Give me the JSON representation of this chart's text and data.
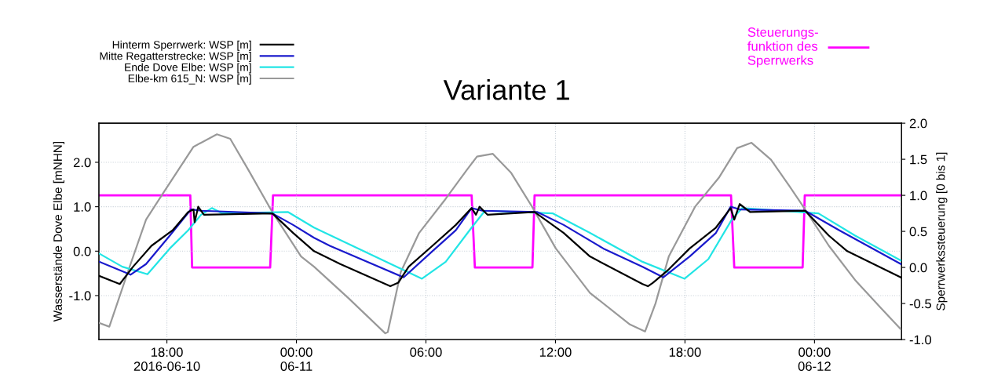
{
  "chart_data": {
    "type": "line",
    "title": "Variante 1",
    "ylabel": "Wasserstände Dove Elbe [mNHN]",
    "y2label": "Sperrwerkssteuerung [0 bis 1]",
    "xlim": [
      "2016-06-10T14:51",
      "2016-06-12T04:02"
    ],
    "xticks": [
      {
        "value": "2016-06-10T18:00",
        "label": "18:00\n2016-06-10"
      },
      {
        "value": "2016-06-11T00:00",
        "label": "00:00\n06-11"
      },
      {
        "value": "2016-06-11T06:00",
        "label": "06:00"
      },
      {
        "value": "2016-06-11T12:00",
        "label": "12:00"
      },
      {
        "value": "2016-06-11T18:00",
        "label": "18:00"
      },
      {
        "value": "2016-06-12T00:00",
        "label": "00:00\n06-12"
      }
    ],
    "ylim": [
      -1.99,
      2.88
    ],
    "yticks": [
      {
        "value": -1,
        "label": "-1.0"
      },
      {
        "value": 0,
        "label": "0.0"
      },
      {
        "value": 1,
        "label": "1.0"
      },
      {
        "value": 2,
        "label": "2.0"
      }
    ],
    "y2lim": [
      -1,
      2
    ],
    "y2ticks": [
      {
        "value": -1,
        "label": "-1.0"
      },
      {
        "value": -0.5,
        "label": "-0.5"
      },
      {
        "value": 0,
        "label": "0.0"
      },
      {
        "value": 0.5,
        "label": "0.5"
      },
      {
        "value": 1,
        "label": "1.0"
      },
      {
        "value": 1.5,
        "label": "1.5"
      },
      {
        "value": 2,
        "label": "2.0"
      }
    ],
    "grid": true,
    "legend": "top",
    "marker": "none",
    "line_style": "solid",
    "series": [
      {
        "name": "Elbe-km 615_N: WSP [m]",
        "color": "#999999",
        "x": [
          "2016-06-10T14:53",
          "2016-06-10T15:20",
          "2016-06-10T16:19",
          "2016-06-10T17:02",
          "2016-06-10T17:53",
          "2016-06-10T19:14",
          "2016-06-10T20:19",
          "2016-06-10T20:56",
          "2016-06-10T21:47",
          "2016-06-10T22:53",
          "2016-06-11T00:13",
          "2016-06-11T00:49",
          "2016-06-11T02:25",
          "2016-06-11T04:07",
          "2016-06-11T04:14",
          "2016-06-11T04:50",
          "2016-06-11T05:41",
          "2016-06-11T06:55",
          "2016-06-11T07:53",
          "2016-06-11T08:22",
          "2016-06-11T09:06",
          "2016-06-11T09:57",
          "2016-06-11T10:55",
          "2016-06-11T12:01",
          "2016-06-11T13:36",
          "2016-06-11T15:27",
          "2016-06-11T16:09",
          "2016-06-11T16:38",
          "2016-06-11T17:15",
          "2016-06-11T18:28",
          "2016-06-11T19:34",
          "2016-06-11T20:25",
          "2016-06-11T21:05",
          "2016-06-11T21:59",
          "2016-06-11T22:50",
          "2016-06-11T23:34",
          "2016-06-12T00:40",
          "2016-06-12T01:53",
          "2016-06-12T03:06",
          "2016-06-12T04:00"
        ],
        "values": [
          -1.62,
          -1.7,
          -0.29,
          0.71,
          1.35,
          2.35,
          2.63,
          2.53,
          1.82,
          0.88,
          -0.12,
          -0.35,
          -1.06,
          -1.85,
          -1.82,
          -0.47,
          0.41,
          1.18,
          1.82,
          2.13,
          2.19,
          1.76,
          1.0,
          0.06,
          -0.94,
          -1.65,
          -1.81,
          -1.18,
          -0.12,
          1.0,
          1.65,
          2.32,
          2.44,
          2.06,
          1.47,
          0.94,
          0.12,
          -0.65,
          -1.29,
          -1.76
        ]
      },
      {
        "name": "Ende Dove Elbe: WSP [m]",
        "color": "#22e5e5",
        "x": [
          "2016-06-10T14:53",
          "2016-06-10T15:56",
          "2016-06-10T17:06",
          "2016-06-10T18:08",
          "2016-06-10T18:59",
          "2016-06-10T19:35",
          "2016-06-10T20:05",
          "2016-06-10T20:34",
          "2016-06-10T23:37",
          "2016-06-11T00:49",
          "2016-06-11T05:49",
          "2016-06-11T06:55",
          "2016-06-11T08:07",
          "2016-06-11T08:44",
          "2016-06-11T11:53",
          "2016-06-11T13:36",
          "2016-06-11T16:02",
          "2016-06-11T17:59",
          "2016-06-11T19:05",
          "2016-06-11T20:10",
          "2016-06-11T20:39",
          "2016-06-12T00:11",
          "2016-06-12T01:53",
          "2016-06-12T04:00"
        ],
        "values": [
          -0.06,
          -0.35,
          -0.52,
          0.06,
          0.47,
          0.82,
          0.97,
          0.85,
          0.88,
          0.53,
          -0.62,
          -0.24,
          0.53,
          0.91,
          0.85,
          0.41,
          -0.24,
          -0.62,
          -0.18,
          0.71,
          0.97,
          0.85,
          0.35,
          -0.21
        ]
      },
      {
        "name": "Mitte Regatterstrecke: WSP [m]",
        "color": "#1a1acc",
        "x": [
          "2016-06-10T14:53",
          "2016-06-10T16:19",
          "2016-06-10T17:02",
          "2016-06-10T18:08",
          "2016-06-10T19:07",
          "2016-06-10T19:35",
          "2016-06-10T22:53",
          "2016-06-10T23:51",
          "2016-06-11T00:49",
          "2016-06-11T01:33",
          "2016-06-11T04:58",
          "2016-06-11T06:18",
          "2016-06-11T07:23",
          "2016-06-11T08:07",
          "2016-06-11T08:37",
          "2016-06-11T11:10",
          "2016-06-11T12:23",
          "2016-06-11T14:13",
          "2016-06-11T16:02",
          "2016-06-11T17:00",
          "2016-06-11T18:13",
          "2016-06-11T19:26",
          "2016-06-11T20:07",
          "2016-06-11T20:32",
          "2016-06-11T23:34",
          "2016-06-12T01:09",
          "2016-06-12T04:00"
        ],
        "values": [
          -0.24,
          -0.53,
          -0.29,
          0.35,
          0.94,
          0.91,
          0.85,
          0.59,
          0.3,
          0.12,
          -0.59,
          0.0,
          0.47,
          0.97,
          0.91,
          0.88,
          0.59,
          0.06,
          -0.35,
          -0.59,
          -0.12,
          0.41,
          1.0,
          0.94,
          0.91,
          0.47,
          -0.29
        ]
      },
      {
        "name": "Hinterm Sperrwerk: WSP [m]",
        "color": "#000000",
        "x": [
          "2016-06-10T14:53",
          "2016-06-10T15:49",
          "2016-06-10T16:26",
          "2016-06-10T17:17",
          "2016-06-10T18:16",
          "2016-06-10T18:59",
          "2016-06-10T19:14",
          "2016-06-10T19:17",
          "2016-06-10T19:27",
          "2016-06-10T19:43",
          "2016-06-10T22:53",
          "2016-06-10T23:51",
          "2016-06-11T00:49",
          "2016-06-11T02:02",
          "2016-06-11T04:21",
          "2016-06-11T04:43",
          "2016-06-11T05:12",
          "2016-06-11T06:18",
          "2016-06-11T07:23",
          "2016-06-11T08:07",
          "2016-06-11T08:19",
          "2016-06-11T08:29",
          "2016-06-11T08:51",
          "2016-06-11T11:02",
          "2016-06-11T12:23",
          "2016-06-11T13:36",
          "2016-06-11T16:02",
          "2016-06-11T16:17",
          "2016-06-11T16:31",
          "2016-06-11T17:15",
          "2016-06-11T18:13",
          "2016-06-11T19:26",
          "2016-06-11T20:07",
          "2016-06-11T20:17",
          "2016-06-11T20:32",
          "2016-06-11T21:01",
          "2016-06-11T23:34",
          "2016-06-12T00:40",
          "2016-06-12T01:31",
          "2016-06-12T04:00"
        ],
        "values": [
          -0.56,
          -0.74,
          -0.35,
          0.12,
          0.47,
          0.88,
          0.94,
          0.65,
          1.0,
          0.82,
          0.85,
          0.41,
          0.0,
          -0.29,
          -0.79,
          -0.71,
          -0.35,
          0.12,
          0.59,
          0.97,
          0.82,
          1.0,
          0.82,
          0.88,
          0.41,
          -0.12,
          -0.74,
          -0.79,
          -0.71,
          -0.41,
          0.06,
          0.53,
          0.97,
          0.71,
          1.06,
          0.88,
          0.91,
          0.35,
          0.0,
          -0.59
        ]
      },
      {
        "name": "Steuerungs-\nfunktion des\nSperrwerks",
        "color": "#ff00ff",
        "axis": "y2",
        "x": [
          "2016-06-10T14:51",
          "2016-06-10T19:05",
          "2016-06-10T19:10",
          "2016-06-10T22:47",
          "2016-06-10T22:55",
          "2016-06-11T08:07",
          "2016-06-11T08:16",
          "2016-06-11T10:56",
          "2016-06-11T11:02",
          "2016-06-11T20:08",
          "2016-06-11T20:17",
          "2016-06-11T23:27",
          "2016-06-11T23:33",
          "2016-06-12T04:02"
        ],
        "values": [
          1,
          1,
          0,
          0,
          1,
          1,
          0,
          0,
          1,
          1,
          0,
          0,
          1,
          1
        ]
      }
    ]
  }
}
